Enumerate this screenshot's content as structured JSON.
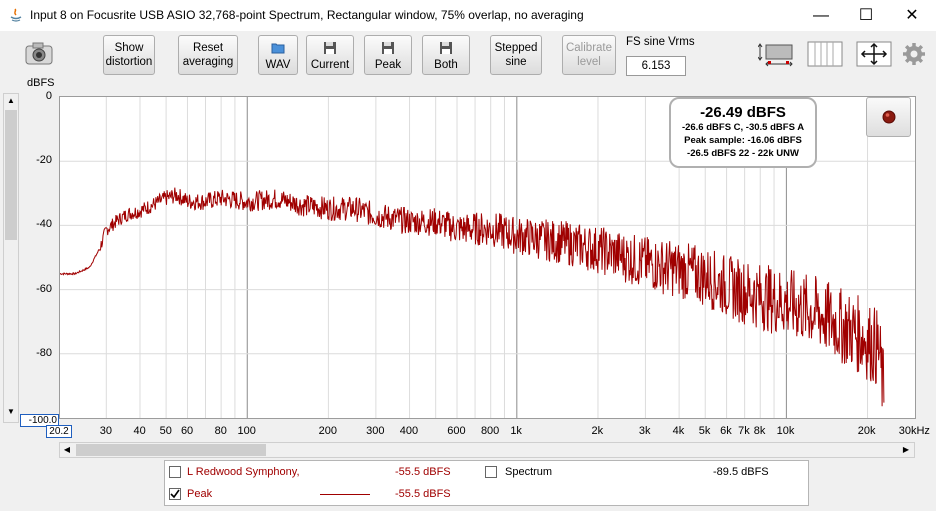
{
  "window": {
    "title": "Input 8 on Focusrite USB ASIO 32,768-point Spectrum, Rectangular window, 75% overlap, no averaging",
    "minimize": "—",
    "maximize": "☐",
    "close": "✕"
  },
  "toolbar": {
    "show_distortion": "Show distortion",
    "reset_averaging": "Reset averaging",
    "wav": "WAV",
    "current": "Current",
    "peak": "Peak",
    "both": "Both",
    "stepped_sine": "Stepped sine",
    "calibrate_level": "Calibrate level",
    "fs_label": "FS sine Vrms",
    "fs_value": "6.153"
  },
  "plot": {
    "ylabel": "dBFS",
    "xunit": "Hz",
    "xmin_label": "20.2",
    "ymin_label": "-100.0",
    "trace_color": "#a00000"
  },
  "infobox": {
    "level": "-26.49 dBFS",
    "line1": "-26.6 dBFS C, -30.5 dBFS A",
    "line2": "Peak sample: -16.06 dBFS",
    "line3": "-26.5 dBFS 22 - 22k UNW"
  },
  "legend": {
    "row1_name": "L Redwood Symphony,",
    "row1_value": "-55.5 dBFS",
    "row2_name": "Peak",
    "row2_value": "-55.5 dBFS",
    "row3_name": "Spectrum",
    "row3_value": "-89.5 dBFS"
  },
  "chart_data": {
    "type": "line",
    "xscale": "log",
    "xlim": [
      20.2,
      30000
    ],
    "ylim": [
      -100,
      0
    ],
    "yticks": [
      0,
      -20,
      -40,
      -60,
      -80
    ],
    "xticks": [
      {
        "v": 30,
        "l": "30"
      },
      {
        "v": 40,
        "l": "40"
      },
      {
        "v": 50,
        "l": "50"
      },
      {
        "v": 60,
        "l": "60"
      },
      {
        "v": 80,
        "l": "80"
      },
      {
        "v": 100,
        "l": "100"
      },
      {
        "v": 200,
        "l": "200"
      },
      {
        "v": 300,
        "l": "300"
      },
      {
        "v": 400,
        "l": "400"
      },
      {
        "v": 600,
        "l": "600"
      },
      {
        "v": 800,
        "l": "800"
      },
      {
        "v": 1000,
        "l": "1k"
      },
      {
        "v": 2000,
        "l": "2k"
      },
      {
        "v": 3000,
        "l": "3k"
      },
      {
        "v": 4000,
        "l": "4k"
      },
      {
        "v": 5000,
        "l": "5k"
      },
      {
        "v": 6000,
        "l": "6k"
      },
      {
        "v": 7000,
        "l": "7k"
      },
      {
        "v": 8000,
        "l": "8k"
      },
      {
        "v": 10000,
        "l": "10k"
      },
      {
        "v": 20000,
        "l": "20k"
      },
      {
        "v": 30000,
        "l": "30kHz"
      }
    ],
    "series": [
      {
        "name": "Peak",
        "x": [
          20.2,
          23,
          26,
          28,
          30,
          33,
          36,
          40,
          45,
          50,
          55,
          60,
          70,
          80,
          100,
          130,
          160,
          200,
          250,
          300,
          400,
          500,
          600,
          800,
          1000,
          1500,
          2000,
          3000,
          4000,
          5000,
          6000,
          8000,
          10000,
          13000,
          16000,
          19000,
          22000,
          23000
        ],
        "y": [
          -55,
          -55,
          -53,
          -48,
          -41,
          -38,
          -36,
          -35,
          -33,
          -31,
          -30,
          -32,
          -32,
          -31,
          -32,
          -31,
          -33,
          -34,
          -34,
          -36,
          -38,
          -38,
          -40,
          -40,
          -42,
          -44,
          -46,
          -50,
          -52,
          -54,
          -57,
          -60,
          -62,
          -65,
          -69,
          -72,
          -76,
          -90
        ]
      }
    ]
  }
}
